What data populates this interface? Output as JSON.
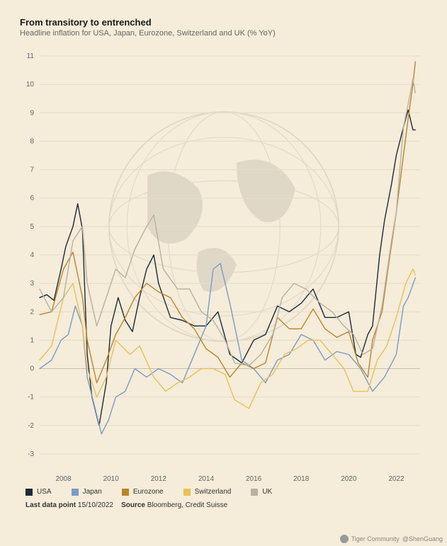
{
  "header": {
    "title": "From transitory to entrenched",
    "subtitle": "Headline inflation for USA, Japan, Eurozone, Switzerland and UK (% YoY)"
  },
  "chart": {
    "type": "line",
    "background_color": "#f5ecd9",
    "grid_color": "#e5dcc8",
    "baseline_color": "#c9bfa7",
    "axis_text_color": "#666666",
    "ylim": [
      -3.5,
      11.2
    ],
    "yticks": [
      -3,
      -2,
      -1,
      0,
      1,
      2,
      3,
      4,
      5,
      6,
      7,
      8,
      9,
      10,
      11
    ],
    "xlim_years": [
      2007.0,
      2023.0
    ],
    "xticks_years": [
      2008,
      2010,
      2012,
      2014,
      2016,
      2018,
      2020,
      2022
    ],
    "tick_fontsize": 10,
    "line_width": 1.4,
    "series": [
      {
        "name": "USA",
        "color": "#1a2a3a",
        "legend_label": "USA",
        "points": [
          [
            2007.0,
            2.5
          ],
          [
            2007.3,
            2.6
          ],
          [
            2007.6,
            2.4
          ],
          [
            2007.9,
            3.5
          ],
          [
            2008.1,
            4.3
          ],
          [
            2008.4,
            5.0
          ],
          [
            2008.6,
            5.8
          ],
          [
            2008.8,
            4.9
          ],
          [
            2009.0,
            0.5
          ],
          [
            2009.2,
            -1.0
          ],
          [
            2009.5,
            -2.0
          ],
          [
            2009.8,
            -0.5
          ],
          [
            2010.0,
            1.5
          ],
          [
            2010.3,
            2.5
          ],
          [
            2010.6,
            1.7
          ],
          [
            2010.9,
            1.3
          ],
          [
            2011.2,
            2.5
          ],
          [
            2011.5,
            3.5
          ],
          [
            2011.8,
            4.0
          ],
          [
            2012.0,
            3.0
          ],
          [
            2012.5,
            1.8
          ],
          [
            2013.0,
            1.7
          ],
          [
            2013.5,
            1.5
          ],
          [
            2014.0,
            1.5
          ],
          [
            2014.5,
            2.0
          ],
          [
            2015.0,
            0.5
          ],
          [
            2015.5,
            0.2
          ],
          [
            2016.0,
            1.0
          ],
          [
            2016.5,
            1.2
          ],
          [
            2017.0,
            2.2
          ],
          [
            2017.5,
            2.0
          ],
          [
            2018.0,
            2.3
          ],
          [
            2018.5,
            2.8
          ],
          [
            2019.0,
            1.8
          ],
          [
            2019.5,
            1.8
          ],
          [
            2020.0,
            2.0
          ],
          [
            2020.3,
            0.5
          ],
          [
            2020.5,
            0.4
          ],
          [
            2020.8,
            1.2
          ],
          [
            2021.0,
            1.5
          ],
          [
            2021.3,
            4.0
          ],
          [
            2021.5,
            5.2
          ],
          [
            2021.8,
            6.5
          ],
          [
            2022.0,
            7.5
          ],
          [
            2022.3,
            8.5
          ],
          [
            2022.5,
            9.1
          ],
          [
            2022.7,
            8.4
          ],
          [
            2022.8,
            8.4
          ]
        ]
      },
      {
        "name": "Japan",
        "color": "#7a9cc6",
        "legend_label": "Japan",
        "points": [
          [
            2007.0,
            0.0
          ],
          [
            2007.5,
            0.3
          ],
          [
            2007.9,
            1.0
          ],
          [
            2008.2,
            1.2
          ],
          [
            2008.5,
            2.2
          ],
          [
            2008.8,
            1.5
          ],
          [
            2009.0,
            -0.3
          ],
          [
            2009.3,
            -1.3
          ],
          [
            2009.6,
            -2.3
          ],
          [
            2009.9,
            -1.8
          ],
          [
            2010.2,
            -1.0
          ],
          [
            2010.6,
            -0.8
          ],
          [
            2011.0,
            0.0
          ],
          [
            2011.5,
            -0.3
          ],
          [
            2012.0,
            0.0
          ],
          [
            2012.5,
            -0.2
          ],
          [
            2013.0,
            -0.5
          ],
          [
            2013.5,
            0.5
          ],
          [
            2014.0,
            1.5
          ],
          [
            2014.3,
            3.5
          ],
          [
            2014.6,
            3.7
          ],
          [
            2015.0,
            2.3
          ],
          [
            2015.5,
            0.3
          ],
          [
            2016.0,
            0.0
          ],
          [
            2016.5,
            -0.5
          ],
          [
            2017.0,
            0.3
          ],
          [
            2017.5,
            0.5
          ],
          [
            2018.0,
            1.2
          ],
          [
            2018.5,
            1.0
          ],
          [
            2019.0,
            0.3
          ],
          [
            2019.5,
            0.6
          ],
          [
            2020.0,
            0.5
          ],
          [
            2020.5,
            0.0
          ],
          [
            2021.0,
            -0.8
          ],
          [
            2021.5,
            -0.3
          ],
          [
            2022.0,
            0.5
          ],
          [
            2022.3,
            2.2
          ],
          [
            2022.5,
            2.5
          ],
          [
            2022.8,
            3.2
          ]
        ]
      },
      {
        "name": "Eurozone",
        "color": "#b8862b",
        "legend_label": "Eurozone",
        "points": [
          [
            2007.0,
            1.9
          ],
          [
            2007.5,
            2.0
          ],
          [
            2008.0,
            3.5
          ],
          [
            2008.4,
            4.1
          ],
          [
            2008.8,
            2.5
          ],
          [
            2009.0,
            1.0
          ],
          [
            2009.4,
            -0.5
          ],
          [
            2009.8,
            0.3
          ],
          [
            2010.2,
            1.2
          ],
          [
            2010.6,
            1.8
          ],
          [
            2011.0,
            2.5
          ],
          [
            2011.5,
            3.0
          ],
          [
            2012.0,
            2.7
          ],
          [
            2012.5,
            2.5
          ],
          [
            2013.0,
            1.8
          ],
          [
            2013.5,
            1.4
          ],
          [
            2014.0,
            0.7
          ],
          [
            2014.5,
            0.4
          ],
          [
            2015.0,
            -0.3
          ],
          [
            2015.5,
            0.2
          ],
          [
            2016.0,
            0.0
          ],
          [
            2016.5,
            0.2
          ],
          [
            2017.0,
            1.8
          ],
          [
            2017.5,
            1.4
          ],
          [
            2018.0,
            1.4
          ],
          [
            2018.5,
            2.1
          ],
          [
            2019.0,
            1.4
          ],
          [
            2019.5,
            1.1
          ],
          [
            2020.0,
            1.3
          ],
          [
            2020.4,
            0.2
          ],
          [
            2020.8,
            -0.3
          ],
          [
            2021.0,
            1.0
          ],
          [
            2021.4,
            2.0
          ],
          [
            2021.7,
            3.8
          ],
          [
            2022.0,
            5.5
          ],
          [
            2022.3,
            7.5
          ],
          [
            2022.5,
            8.8
          ],
          [
            2022.7,
            10.0
          ],
          [
            2022.8,
            10.8
          ]
        ]
      },
      {
        "name": "Switzerland",
        "color": "#e8c15a",
        "legend_label": "Switzerland",
        "points": [
          [
            2007.0,
            0.3
          ],
          [
            2007.5,
            0.8
          ],
          [
            2008.0,
            2.5
          ],
          [
            2008.4,
            3.0
          ],
          [
            2008.8,
            1.5
          ],
          [
            2009.0,
            0.0
          ],
          [
            2009.4,
            -1.0
          ],
          [
            2009.8,
            -0.3
          ],
          [
            2010.2,
            1.0
          ],
          [
            2010.8,
            0.5
          ],
          [
            2011.2,
            0.8
          ],
          [
            2011.8,
            -0.3
          ],
          [
            2012.3,
            -0.8
          ],
          [
            2012.8,
            -0.5
          ],
          [
            2013.3,
            -0.3
          ],
          [
            2013.8,
            0.0
          ],
          [
            2014.3,
            0.0
          ],
          [
            2014.8,
            -0.2
          ],
          [
            2015.2,
            -1.1
          ],
          [
            2015.8,
            -1.4
          ],
          [
            2016.3,
            -0.5
          ],
          [
            2016.8,
            -0.2
          ],
          [
            2017.3,
            0.5
          ],
          [
            2017.8,
            0.7
          ],
          [
            2018.3,
            1.0
          ],
          [
            2018.8,
            1.0
          ],
          [
            2019.3,
            0.5
          ],
          [
            2019.8,
            0.0
          ],
          [
            2020.2,
            -0.8
          ],
          [
            2020.8,
            -0.8
          ],
          [
            2021.2,
            0.3
          ],
          [
            2021.6,
            0.8
          ],
          [
            2022.0,
            1.8
          ],
          [
            2022.4,
            3.0
          ],
          [
            2022.7,
            3.5
          ],
          [
            2022.8,
            3.3
          ]
        ]
      },
      {
        "name": "UK",
        "color": "#b8b0a0",
        "legend_label": "UK",
        "points": [
          [
            2007.0,
            2.8
          ],
          [
            2007.5,
            2.0
          ],
          [
            2008.0,
            2.5
          ],
          [
            2008.4,
            4.5
          ],
          [
            2008.8,
            5.0
          ],
          [
            2009.0,
            3.0
          ],
          [
            2009.4,
            1.5
          ],
          [
            2009.8,
            2.5
          ],
          [
            2010.2,
            3.5
          ],
          [
            2010.6,
            3.2
          ],
          [
            2011.0,
            4.2
          ],
          [
            2011.5,
            5.0
          ],
          [
            2011.8,
            5.4
          ],
          [
            2012.2,
            3.5
          ],
          [
            2012.8,
            2.8
          ],
          [
            2013.3,
            2.8
          ],
          [
            2013.8,
            2.0
          ],
          [
            2014.3,
            1.7
          ],
          [
            2014.8,
            1.0
          ],
          [
            2015.2,
            0.2
          ],
          [
            2015.8,
            0.1
          ],
          [
            2016.3,
            0.5
          ],
          [
            2016.8,
            1.2
          ],
          [
            2017.2,
            2.5
          ],
          [
            2017.7,
            3.0
          ],
          [
            2018.2,
            2.8
          ],
          [
            2018.8,
            2.3
          ],
          [
            2019.3,
            2.0
          ],
          [
            2019.8,
            1.5
          ],
          [
            2020.2,
            1.2
          ],
          [
            2020.6,
            0.5
          ],
          [
            2021.0,
            0.7
          ],
          [
            2021.4,
            2.2
          ],
          [
            2021.8,
            4.5
          ],
          [
            2022.0,
            5.5
          ],
          [
            2022.3,
            8.5
          ],
          [
            2022.5,
            9.3
          ],
          [
            2022.7,
            10.2
          ],
          [
            2022.8,
            9.7
          ]
        ]
      }
    ]
  },
  "legend_order": [
    "USA",
    "Japan",
    "Eurozone",
    "Switzerland",
    "UK"
  ],
  "footer": {
    "last_point_label": "Last data point",
    "last_point_value": "15/10/2022",
    "source_label": "Source",
    "source_value": "Bloomberg, Credit Suisse"
  },
  "watermark": {
    "brand": "Tiger Community",
    "handle": "@ShenGuang"
  }
}
